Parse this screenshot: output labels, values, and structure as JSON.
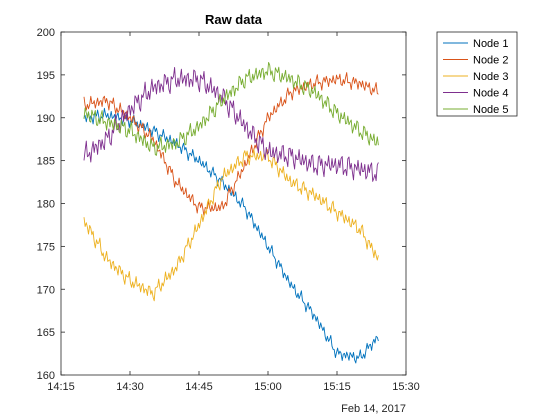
{
  "chart_data": {
    "type": "line",
    "title": "Raw data",
    "xlabel": "",
    "ylabel": "",
    "x_tick_labels": [
      "14:15",
      "14:30",
      "14:45",
      "15:00",
      "15:15",
      "15:30"
    ],
    "x_ticks_minutes": [
      855,
      870,
      885,
      900,
      915,
      930
    ],
    "x_secondary_label": "Feb 14, 2017",
    "xlim_minutes": [
      855,
      930
    ],
    "ylim": [
      160,
      200
    ],
    "y_ticks": [
      160,
      165,
      170,
      175,
      180,
      185,
      190,
      195,
      200
    ],
    "grid": false,
    "legend_position": "outside-top-right",
    "x_minutes": [
      860,
      865,
      870,
      875,
      880,
      885,
      890,
      895,
      900,
      905,
      910,
      915,
      920,
      924
    ],
    "series": [
      {
        "name": "Node 1",
        "color": "#0072BD",
        "values": [
          190.0,
          190.3,
          189.7,
          188.5,
          187.0,
          185.0,
          182.5,
          179.5,
          175.0,
          170.5,
          167.0,
          162.5,
          162.0,
          164.5
        ]
      },
      {
        "name": "Node 2",
        "color": "#D95319",
        "values": [
          191.5,
          192.0,
          190.0,
          187.5,
          182.5,
          179.5,
          179.5,
          184.5,
          190.0,
          193.0,
          194.0,
          194.5,
          194.0,
          193.0
        ]
      },
      {
        "name": "Node 3",
        "color": "#EDB120",
        "values": [
          178.0,
          173.5,
          171.0,
          169.5,
          172.5,
          177.5,
          183.0,
          185.5,
          185.5,
          182.5,
          181.0,
          179.0,
          177.0,
          173.5
        ]
      },
      {
        "name": "Node 4",
        "color": "#7E2F8E",
        "values": [
          185.5,
          187.5,
          191.0,
          193.5,
          194.5,
          194.5,
          192.5,
          189.0,
          186.0,
          185.5,
          184.5,
          184.5,
          184.0,
          183.5
        ]
      },
      {
        "name": "Node 5",
        "color": "#77AC30",
        "values": [
          190.5,
          189.5,
          188.5,
          186.5,
          187.0,
          189.0,
          192.0,
          194.5,
          195.5,
          194.5,
          193.0,
          190.5,
          188.5,
          187.0
        ]
      }
    ]
  }
}
